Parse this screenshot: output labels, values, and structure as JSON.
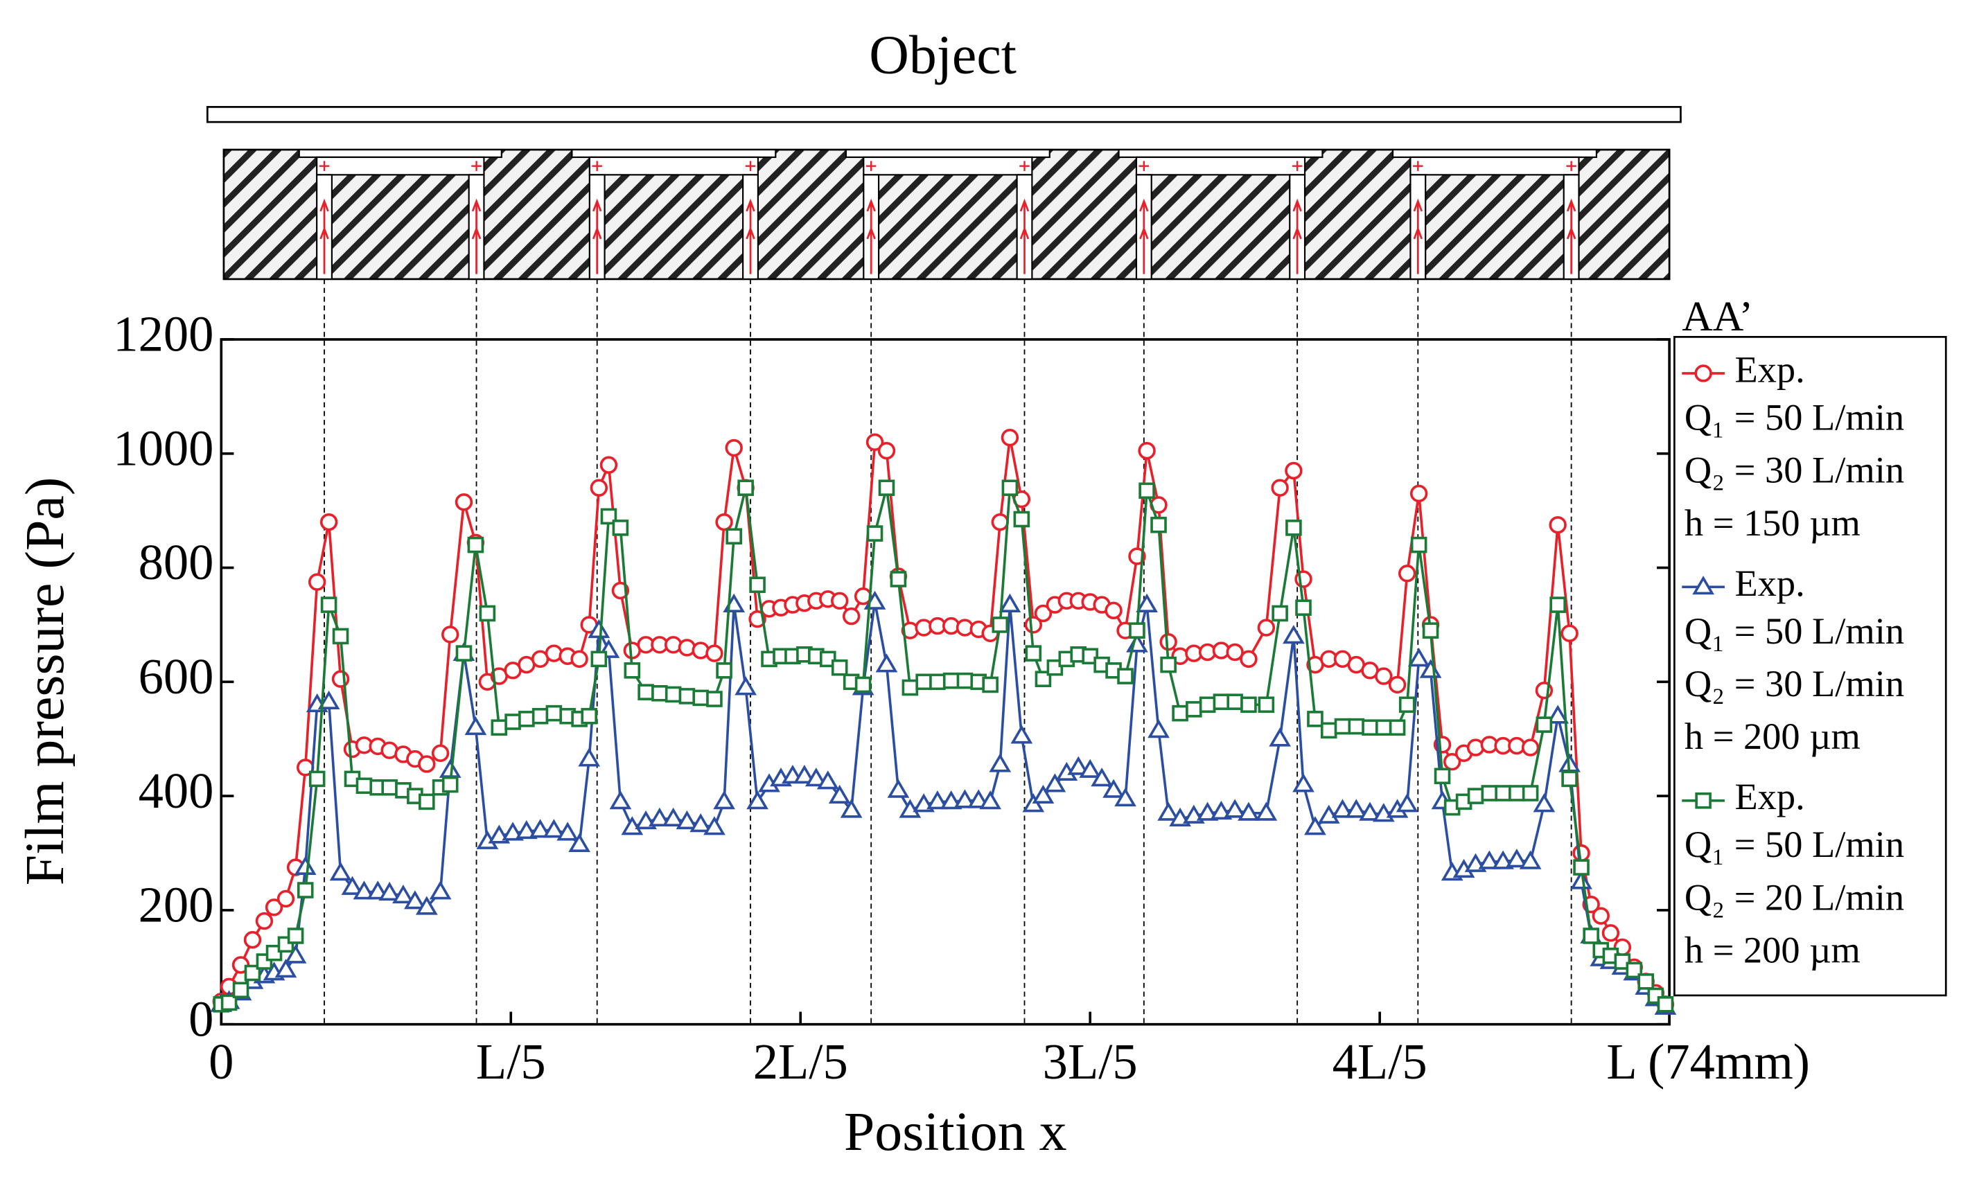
{
  "diagram": {
    "title": "Object",
    "section": "AA’"
  },
  "chart_data": {
    "type": "line",
    "xlabel": "Position x",
    "ylabel": "Film pressure (Pa)",
    "xlim": [
      0,
      74
    ],
    "ylim": [
      0,
      1200
    ],
    "xticks": [
      0,
      {
        "value": 14.8,
        "label": "L/5"
      },
      {
        "value": 29.6,
        "label": "2L/5"
      },
      {
        "value": 44.4,
        "label": "3L/5"
      },
      {
        "value": 59.2,
        "label": "4L/5"
      },
      {
        "value": 74,
        "label": "L (74mm)"
      }
    ],
    "yticks": [
      0,
      200,
      400,
      600,
      800,
      1000,
      1200
    ],
    "x": [
      0,
      0.4,
      1.0,
      1.6,
      2.2,
      2.7,
      3.3,
      3.8,
      4.3,
      4.9,
      5.5,
      6.1,
      6.7,
      7.3,
      8.0,
      8.6,
      9.3,
      9.9,
      10.5,
      11.2,
      11.7,
      12.4,
      13.0,
      13.6,
      14.2,
      14.9,
      15.6,
      16.3,
      17.0,
      17.7,
      18.3,
      18.8,
      19.3,
      19.8,
      20.4,
      21.0,
      21.7,
      22.4,
      23.1,
      23.8,
      24.5,
      25.2,
      25.7,
      26.2,
      26.8,
      27.4,
      28.0,
      28.6,
      29.2,
      29.8,
      30.4,
      31.0,
      31.6,
      32.2,
      32.8,
      33.4,
      34.0,
      34.6,
      35.2,
      35.9,
      36.6,
      37.3,
      38.0,
      38.7,
      39.3,
      39.8,
      40.3,
      40.9,
      41.5,
      42.0,
      42.6,
      43.2,
      43.8,
      44.4,
      45.0,
      45.6,
      46.2,
      46.8,
      47.3,
      47.9,
      48.4,
      49.0,
      49.7,
      50.4,
      51.1,
      51.8,
      52.5,
      53.4,
      54.1,
      54.8,
      55.3,
      55.9,
      56.6,
      57.3,
      58.0,
      58.7,
      59.4,
      60.1,
      60.6,
      61.2,
      61.8,
      62.4,
      62.9,
      63.5,
      64.1,
      64.8,
      65.5,
      66.2,
      66.9,
      67.6,
      68.3,
      68.9,
      69.5,
      70.0,
      70.5,
      71.0,
      71.6,
      72.2,
      72.8,
      73.3,
      73.8
    ],
    "series": [
      {
        "name": "Exp.",
        "color": "#e8202a",
        "marker": "circle",
        "conditions": [
          "Q₁ = 50 L/min",
          "Q₂ = 30 L/min",
          "h = 150 µm"
        ],
        "values": [
          40,
          66,
          104,
          148,
          181,
          205,
          220,
          275,
          450,
          775,
          880,
          605,
          482,
          489,
          487,
          480,
          473,
          465,
          456,
          475,
          683,
          915,
          844,
          600,
          610,
          620,
          630,
          640,
          650,
          645,
          640,
          700,
          940,
          980,
          760,
          655,
          665,
          665,
          665,
          660,
          655,
          650,
          880,
          1010,
          940,
          710,
          728,
          730,
          735,
          738,
          742,
          745,
          742,
          715,
          750,
          1020,
          1005,
          785,
          690,
          695,
          698,
          698,
          695,
          692,
          685,
          880,
          1028,
          920,
          700,
          720,
          735,
          742,
          742,
          740,
          735,
          725,
          690,
          820,
          1005,
          910,
          670,
          645,
          650,
          652,
          655,
          652,
          640,
          695,
          940,
          970,
          780,
          630,
          640,
          640,
          630,
          620,
          610,
          595,
          790,
          930,
          700,
          490,
          460,
          475,
          485,
          490,
          488,
          488,
          485,
          585,
          875,
          685,
          300,
          210,
          190,
          160,
          135,
          100,
          75,
          55,
          35
        ]
      },
      {
        "name": "Exp.",
        "color": "#2b4ea2",
        "marker": "triangle",
        "conditions": [
          "Q₁ = 50 L/min",
          "Q₂ = 30 L/min",
          "h = 200 µm"
        ],
        "values": [
          35,
          40,
          55,
          75,
          85,
          90,
          95,
          120,
          275,
          560,
          565,
          265,
          240,
          232,
          232,
          230,
          225,
          215,
          205,
          232,
          445,
          650,
          520,
          320,
          330,
          335,
          338,
          340,
          340,
          335,
          315,
          465,
          690,
          655,
          390,
          345,
          355,
          360,
          360,
          355,
          350,
          345,
          390,
          735,
          590,
          390,
          420,
          430,
          435,
          435,
          430,
          425,
          400,
          375,
          590,
          740,
          630,
          410,
          375,
          385,
          390,
          390,
          392,
          392,
          390,
          455,
          735,
          505,
          385,
          400,
          420,
          440,
          450,
          445,
          430,
          410,
          395,
          665,
          735,
          515,
          370,
          360,
          365,
          370,
          372,
          375,
          370,
          370,
          500,
          680,
          420,
          345,
          365,
          375,
          375,
          370,
          368,
          375,
          385,
          640,
          620,
          390,
          265,
          270,
          280,
          285,
          285,
          288,
          285,
          385,
          540,
          455,
          250,
          155,
          115,
          110,
          100,
          90,
          65,
          45,
          30
        ]
      },
      {
        "name": "Exp.",
        "color": "#1a7a36",
        "marker": "square",
        "conditions": [
          "Q₁ = 50 L/min",
          "Q₂ = 20 L/min",
          "h = 200 µm"
        ],
        "values": [
          35,
          38,
          60,
          90,
          110,
          125,
          140,
          155,
          235,
          430,
          735,
          680,
          430,
          418,
          415,
          415,
          410,
          400,
          390,
          415,
          420,
          650,
          840,
          720,
          520,
          530,
          535,
          540,
          545,
          540,
          535,
          540,
          640,
          890,
          870,
          620,
          582,
          580,
          578,
          575,
          572,
          570,
          620,
          855,
          940,
          770,
          640,
          645,
          645,
          648,
          645,
          640,
          625,
          600,
          595,
          860,
          940,
          780,
          590,
          600,
          600,
          602,
          602,
          600,
          595,
          700,
          940,
          885,
          650,
          605,
          625,
          640,
          648,
          645,
          630,
          620,
          610,
          690,
          935,
          875,
          630,
          545,
          552,
          560,
          565,
          565,
          560,
          560,
          720,
          870,
          730,
          535,
          515,
          522,
          522,
          520,
          520,
          520,
          560,
          840,
          690,
          435,
          380,
          390,
          400,
          405,
          405,
          405,
          405,
          525,
          735,
          430,
          275,
          155,
          130,
          120,
          110,
          95,
          75,
          50,
          35
        ]
      }
    ]
  }
}
